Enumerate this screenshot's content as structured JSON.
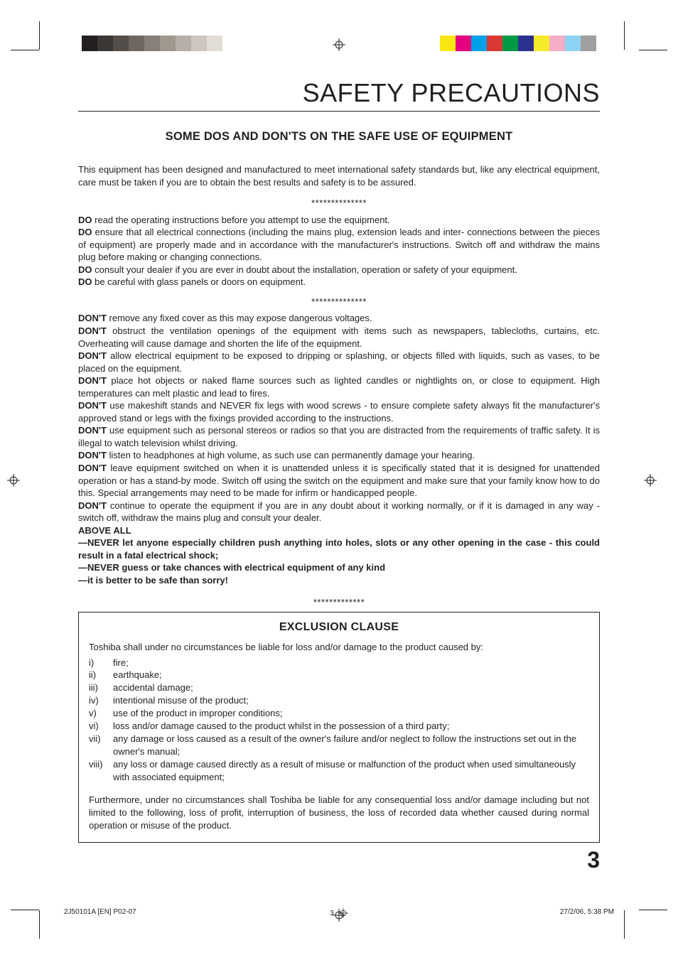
{
  "printerMarks": {
    "grayBar": [
      "#231f20",
      "#3b3735",
      "#544e4a",
      "#6e6761",
      "#877f78",
      "#a0988f",
      "#b6afa7",
      "#ccc6be",
      "#e1ddd6"
    ],
    "cmykBar": [
      "#f9e712",
      "#e4007f",
      "#00a0e9",
      "#da3833",
      "#009944",
      "#2c308e",
      "#f6e92a",
      "#f4aec6",
      "#8dd3f4",
      "#9f9f9e"
    ]
  },
  "title": "SAFETY PRECAUTIONS",
  "subtitle": "SOME DOS AND DON'TS ON THE SAFE USE OF EQUIPMENT",
  "intro": "This equipment has been designed and manufactured to meet international safety standards but, like any electrical equipment, care must be taken if you are to obtain the best results and safety is to be assured.",
  "separator": "**************",
  "dos": [
    {
      "lead": "DO",
      "text": " read the operating instructions before you attempt to use the equipment."
    },
    {
      "lead": "DO",
      "text": " ensure that all electrical connections (including the mains plug, extension leads and inter- connections between the pieces of equipment) are properly made and in accordance with the manufacturer's instructions. Switch off and withdraw the mains plug before making or changing connections."
    },
    {
      "lead": "DO",
      "text": " consult your dealer if you are ever in doubt about the installation, operation or safety of your equipment."
    },
    {
      "lead": "DO",
      "text": " be careful with glass panels or doors on equipment."
    }
  ],
  "donts": [
    {
      "lead": "DON'T",
      "text": " remove any fixed cover as this may expose dangerous voltages."
    },
    {
      "lead": "DON'T",
      "text": " obstruct the ventilation openings of the equipment with items such as newspapers, tablecloths, curtains, etc. Overheating will cause damage and shorten the life of the equipment."
    },
    {
      "lead": "DON'T",
      "text": " allow electrical equipment to be exposed to dripping or splashing, or objects filled with liquids, such as vases, to be placed on the equipment."
    },
    {
      "lead": "DON'T",
      "text": " place hot objects or naked flame sources such as lighted candles or nightlights on, or close to equipment. High temperatures can melt plastic and lead to fires."
    },
    {
      "lead": "DON'T",
      "text": " use makeshift stands and NEVER fix legs with wood screws - to ensure complete safety always fit the manufacturer's approved stand or legs with the fixings provided according to the instructions."
    },
    {
      "lead": "DON'T",
      "text": " use equipment such as personal stereos or radios so that you are distracted from the requirements of traffic safety. It is illegal to watch television whilst driving."
    },
    {
      "lead": "DON'T",
      "text": " listen to headphones at high volume, as such use can permanently damage your hearing."
    },
    {
      "lead": "DON'T",
      "text": " leave equipment switched on when it is unattended unless it is specifically stated that it is designed for unattended operation or has a stand-by mode. Switch off using the switch on the equipment and make sure that your family know how to do this. Special arrangements may need to be made for infirm or handicapped people."
    },
    {
      "lead": "DON'T",
      "text": " continue to operate the equipment if you are in any doubt about it working normally, or if it is damaged in any way -switch off, withdraw the mains plug and consult your dealer."
    }
  ],
  "aboveAll": "ABOVE ALL",
  "never1": "—NEVER let anyone especially children push anything into holes, slots or any other opening in the case - this could result in a fatal electrical shock;",
  "never2": "—NEVER guess or take chances with electrical equipment of any kind",
  "never3": "—it is better to be safe than sorry!",
  "exclSep": "*************",
  "exclusion": {
    "heading": "EXCLUSION CLAUSE",
    "intro": "Toshiba shall under no circumstances be liable for loss and/or damage to the product caused by:",
    "items": [
      {
        "num": "i)",
        "text": "fire;"
      },
      {
        "num": "ii)",
        "text": "earthquake;"
      },
      {
        "num": "iii)",
        "text": "accidental damage;"
      },
      {
        "num": "iv)",
        "text": "intentional misuse of the product;"
      },
      {
        "num": "v)",
        "text": "use of the product in improper conditions;"
      },
      {
        "num": "vi)",
        "text": "loss and/or damage caused to the product whilst in the possession of a third party;"
      },
      {
        "num": "vii)",
        "text": "any damage or loss caused as a result of the owner's failure and/or neglect to follow the instructions set out in the owner's manual;"
      },
      {
        "num": "viii)",
        "text": "any loss or damage caused directly as a result of misuse or malfunction of the product when used simultaneously with associated equipment;"
      }
    ],
    "footer": "Furthermore, under no circumstances shall Toshiba be liable for any consequential loss and/or damage including but not limited to the following, loss of profit, interruption of business, the loss of recorded data whether caused during normal operation or misuse of the product."
  },
  "pageNumber": "3",
  "slug": {
    "file": "2J50101A [EN] P02-07",
    "page": "3",
    "stamp": "27/2/06, 5:38 PM"
  }
}
